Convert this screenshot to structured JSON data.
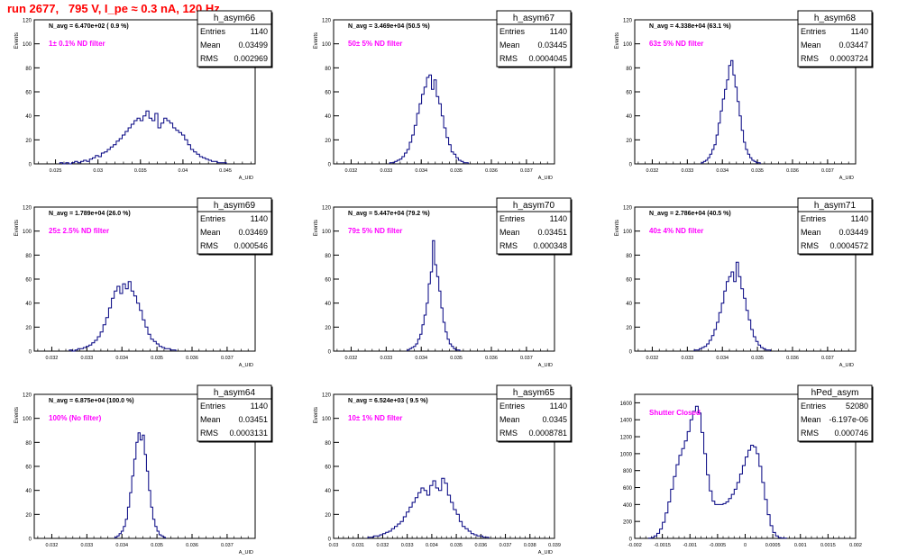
{
  "run_title": "run 2677,   795 V, I_pe ≈ 0.3 nA, 120 Hz",
  "colors": {
    "hist_line": "#000080",
    "filter_label": "#ff00ff",
    "title": "#ff0000",
    "axis": "#000000"
  },
  "chart_data": [
    {
      "type": "histogram",
      "title": "h_asym66",
      "ylabel": "Events",
      "xlabel": "A_UID",
      "navg": "N_avg = 6.470e+02 ( 0.9 %)",
      "filter": "1± 0.1% ND filter",
      "stats": [
        [
          "Entries",
          "1140"
        ],
        [
          "Mean",
          "0.03499"
        ],
        [
          "RMS",
          "0.002969"
        ]
      ],
      "xlim": [
        0.0225,
        0.0485
      ],
      "ylim": [
        0,
        120
      ],
      "xticks": [
        "0.025",
        "0.03",
        "0.035",
        "0.04",
        "0.045"
      ],
      "xtick_values": [
        0.025,
        0.03,
        0.035,
        0.04,
        0.045
      ],
      "yticks": [
        0,
        20,
        40,
        60,
        80,
        100,
        120
      ],
      "bins": {
        "start": 0.0255,
        "width": 0.00035,
        "counts": [
          1,
          0,
          1,
          0,
          1,
          2,
          1,
          2,
          3,
          2,
          4,
          5,
          7,
          6,
          9,
          10,
          12,
          14,
          16,
          19,
          21,
          24,
          27,
          30,
          33,
          36,
          38,
          36,
          40,
          44,
          38,
          36,
          42,
          30,
          34,
          38,
          36,
          34,
          30,
          28,
          26,
          24,
          20,
          16,
          12,
          10,
          8,
          6,
          5,
          4,
          3,
          2,
          2,
          1,
          1,
          1
        ]
      }
    },
    {
      "type": "histogram",
      "title": "h_asym67",
      "ylabel": "Events",
      "xlabel": "A_UID",
      "navg": "N_avg = 3.469e+04 (50.5 %)",
      "filter": "50± 5% ND filter",
      "stats": [
        [
          "Entries",
          "1140"
        ],
        [
          "Mean",
          "0.03445"
        ],
        [
          "RMS",
          "0.0004045"
        ]
      ],
      "xlim": [
        0.0315,
        0.0378
      ],
      "ylim": [
        0,
        120
      ],
      "xticks": [
        "0.032",
        "0.033",
        "0.034",
        "0.035",
        "0.036",
        "0.037"
      ],
      "xtick_values": [
        0.032,
        0.033,
        0.034,
        0.035,
        0.036,
        0.037
      ],
      "yticks": [
        0,
        20,
        40,
        60,
        80,
        100,
        120
      ],
      "bins": {
        "start": 0.0331,
        "width": 7e-05,
        "counts": [
          1,
          1,
          2,
          3,
          4,
          6,
          9,
          12,
          18,
          24,
          32,
          42,
          50,
          58,
          64,
          72,
          74,
          62,
          70,
          56,
          50,
          40,
          30,
          22,
          16,
          10,
          8,
          5,
          3,
          2,
          1,
          1
        ]
      }
    },
    {
      "type": "histogram",
      "title": "h_asym68",
      "ylabel": "Events",
      "xlabel": "A_UID",
      "navg": "N_avg = 4.338e+04 (63.1 %)",
      "filter": "63± 5% ND filter",
      "stats": [
        [
          "Entries",
          "1140"
        ],
        [
          "Mean",
          "0.03447"
        ],
        [
          "RMS",
          "0.0003724"
        ]
      ],
      "xlim": [
        0.0315,
        0.0378
      ],
      "ylim": [
        0,
        120
      ],
      "xticks": [
        "0.032",
        "0.033",
        "0.034",
        "0.035",
        "0.036",
        "0.037"
      ],
      "xtick_values": [
        0.032,
        0.033,
        0.034,
        0.035,
        0.036,
        0.037
      ],
      "yticks": [
        0,
        20,
        40,
        60,
        80,
        100,
        120
      ],
      "bins": {
        "start": 0.0334,
        "width": 6e-05,
        "counts": [
          1,
          2,
          3,
          5,
          8,
          12,
          16,
          24,
          34,
          44,
          54,
          62,
          70,
          82,
          86,
          74,
          64,
          52,
          40,
          28,
          18,
          12,
          8,
          5,
          3,
          2,
          1,
          1
        ]
      }
    },
    {
      "type": "histogram",
      "title": "h_asym69",
      "ylabel": "Events",
      "xlabel": "A_UID",
      "navg": "N_avg = 1.789e+04 (26.0 %)",
      "filter": "25± 2.5% ND filter",
      "stats": [
        [
          "Entries",
          "1140"
        ],
        [
          "Mean",
          "0.03469"
        ],
        [
          "RMS",
          "0.000546"
        ]
      ],
      "xlim": [
        0.0315,
        0.0378
      ],
      "ylim": [
        0,
        120
      ],
      "xticks": [
        "0.032",
        "0.033",
        "0.034",
        "0.035",
        "0.036",
        "0.037"
      ],
      "xtick_values": [
        0.032,
        0.033,
        0.034,
        0.035,
        0.036,
        0.037
      ],
      "yticks": [
        0,
        20,
        40,
        60,
        80,
        100,
        120
      ],
      "bins": {
        "start": 0.0325,
        "width": 8e-05,
        "counts": [
          1,
          0,
          1,
          2,
          2,
          3,
          4,
          5,
          7,
          9,
          12,
          16,
          22,
          28,
          36,
          44,
          50,
          54,
          48,
          56,
          52,
          58,
          50,
          46,
          40,
          34,
          26,
          20,
          14,
          10,
          8,
          6,
          4,
          3,
          2,
          2,
          1,
          1
        ]
      }
    },
    {
      "type": "histogram",
      "title": "h_asym70",
      "ylabel": "Events",
      "xlabel": "A_UID",
      "navg": "N_avg = 5.447e+04 (79.2 %)",
      "filter": "79± 5% ND filter",
      "stats": [
        [
          "Entries",
          "1140"
        ],
        [
          "Mean",
          "0.03451"
        ],
        [
          "RMS",
          "0.000348"
        ]
      ],
      "xlim": [
        0.0315,
        0.0378
      ],
      "ylim": [
        0,
        120
      ],
      "xticks": [
        "0.032",
        "0.033",
        "0.034",
        "0.035",
        "0.036",
        "0.037"
      ],
      "xtick_values": [
        0.032,
        0.033,
        0.034,
        0.035,
        0.036,
        0.037
      ],
      "yticks": [
        0,
        20,
        40,
        60,
        80,
        100,
        120
      ],
      "bins": {
        "start": 0.0336,
        "width": 6e-05,
        "counts": [
          1,
          2,
          3,
          4,
          6,
          10,
          14,
          22,
          30,
          40,
          56,
          66,
          92,
          72,
          62,
          50,
          36,
          24,
          16,
          10,
          6,
          4,
          2,
          1,
          1
        ]
      }
    },
    {
      "type": "histogram",
      "title": "h_asym71",
      "ylabel": "Events",
      "xlabel": "A_UID",
      "navg": "N_avg = 2.786e+04 (40.5 %)",
      "filter": "40± 4% ND filter",
      "stats": [
        [
          "Entries",
          "1140"
        ],
        [
          "Mean",
          "0.03449"
        ],
        [
          "RMS",
          "0.0004572"
        ]
      ],
      "xlim": [
        0.0315,
        0.0378
      ],
      "ylim": [
        0,
        120
      ],
      "xticks": [
        "0.032",
        "0.033",
        "0.034",
        "0.035",
        "0.036",
        "0.037"
      ],
      "xtick_values": [
        0.032,
        0.033,
        0.034,
        0.035,
        0.036,
        0.037
      ],
      "yticks": [
        0,
        20,
        40,
        60,
        80,
        100,
        120
      ],
      "bins": {
        "start": 0.0332,
        "width": 7e-05,
        "counts": [
          1,
          1,
          2,
          3,
          4,
          6,
          9,
          13,
          18,
          24,
          32,
          40,
          50,
          58,
          62,
          66,
          58,
          74,
          62,
          52,
          44,
          34,
          26,
          18,
          12,
          8,
          5,
          3,
          2,
          1,
          1
        ]
      }
    },
    {
      "type": "histogram",
      "title": "h_asym64",
      "ylabel": "Events",
      "xlabel": "A_UID",
      "navg": "N_avg = 6.875e+04 (100.0 %)",
      "filter": "100% (No filter)",
      "stats": [
        [
          "Entries",
          "1140"
        ],
        [
          "Mean",
          "0.03451"
        ],
        [
          "RMS",
          "0.0003131"
        ]
      ],
      "xlim": [
        0.0315,
        0.0378
      ],
      "ylim": [
        0,
        120
      ],
      "xticks": [
        "0.032",
        "0.033",
        "0.034",
        "0.035",
        "0.036",
        "0.037"
      ],
      "xtick_values": [
        0.032,
        0.033,
        0.034,
        0.035,
        0.036,
        0.037
      ],
      "yticks": [
        0,
        20,
        40,
        60,
        80,
        100,
        120
      ],
      "bins": {
        "start": 0.0338,
        "width": 6e-05,
        "counts": [
          1,
          2,
          4,
          6,
          10,
          16,
          26,
          38,
          52,
          66,
          80,
          88,
          82,
          86,
          70,
          56,
          40,
          26,
          16,
          10,
          6,
          3,
          2,
          1
        ]
      }
    },
    {
      "type": "histogram",
      "title": "h_asym65",
      "ylabel": "Events",
      "xlabel": "A_UID",
      "navg": "N_avg = 6.524e+03 ( 9.5 %)",
      "filter": "10± 1% ND filter",
      "stats": [
        [
          "Entries",
          "1140"
        ],
        [
          "Mean",
          "0.0345"
        ],
        [
          "RMS",
          "0.0008781"
        ]
      ],
      "xlim": [
        0.03,
        0.039
      ],
      "ylim": [
        0,
        120
      ],
      "xticks": [
        "0.03",
        "0.031",
        "0.032",
        "0.033",
        "0.034",
        "0.035",
        "0.036",
        "0.037",
        "0.038",
        "0.039"
      ],
      "xtick_values": [
        0.03,
        0.031,
        0.032,
        0.033,
        0.034,
        0.035,
        0.036,
        0.037,
        0.038,
        0.039
      ],
      "yticks": [
        0,
        20,
        40,
        60,
        80,
        100,
        120
      ],
      "bins": {
        "start": 0.0314,
        "width": 0.00012,
        "counts": [
          1,
          1,
          2,
          2,
          3,
          4,
          5,
          6,
          8,
          10,
          12,
          14,
          18,
          22,
          26,
          30,
          34,
          38,
          42,
          40,
          36,
          44,
          48,
          42,
          40,
          50,
          46,
          36,
          30,
          24,
          20,
          14,
          10,
          8,
          6,
          4,
          3,
          2,
          2,
          1,
          1
        ]
      }
    },
    {
      "type": "histogram",
      "title": "hPed_asym",
      "ylabel": "",
      "xlabel": "",
      "navg": "",
      "filter": "Shutter Closed",
      "stats": [
        [
          "Entries",
          "52080"
        ],
        [
          "Mean",
          "-6.197e-06"
        ],
        [
          "RMS",
          "0.000746"
        ]
      ],
      "xlim": [
        -0.002,
        0.002
      ],
      "ylim": [
        0,
        1700
      ],
      "xticks": [
        "-0.002",
        "-0.0015",
        "-0.001",
        "-0.0005",
        "0",
        "0.0005",
        "0.001",
        "0.0015",
        "0.002"
      ],
      "xtick_values": [
        -0.002,
        -0.0015,
        -0.001,
        -0.0005,
        0,
        0.0005,
        0.001,
        0.0015,
        0.002
      ],
      "yticks": [
        0,
        200,
        400,
        600,
        800,
        1000,
        1200,
        1400,
        1600
      ],
      "bins": {
        "start": -0.00175,
        "width": 5e-05,
        "counts": [
          2,
          10,
          30,
          60,
          110,
          190,
          300,
          430,
          580,
          730,
          870,
          980,
          1060,
          1150,
          1260,
          1400,
          1500,
          1560,
          1480,
          1250,
          1000,
          750,
          560,
          440,
          400,
          400,
          400,
          410,
          430,
          470,
          520,
          580,
          660,
          760,
          860,
          960,
          1040,
          1100,
          1080,
          1000,
          850,
          660,
          460,
          280,
          150,
          70,
          30,
          10,
          4,
          2
        ]
      }
    }
  ]
}
